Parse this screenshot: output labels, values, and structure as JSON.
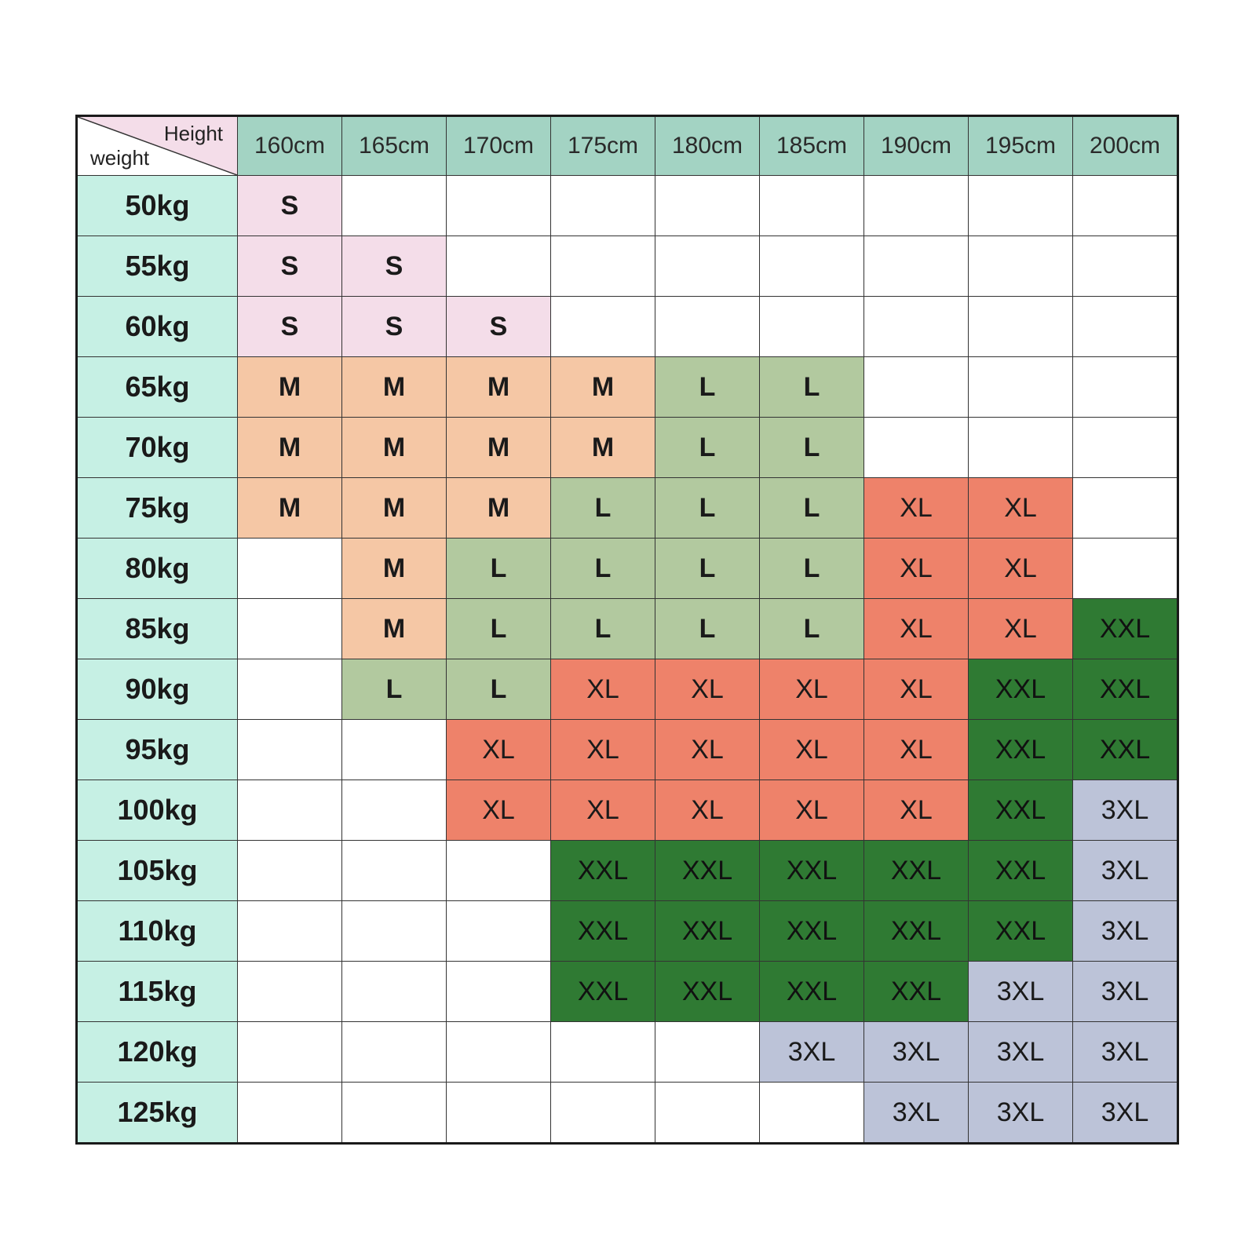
{
  "chart_data": {
    "type": "table",
    "corner": {
      "column_axis_label": "Height",
      "row_axis_label": "weight"
    },
    "columns": [
      "160cm",
      "165cm",
      "170cm",
      "175cm",
      "180cm",
      "185cm",
      "190cm",
      "195cm",
      "200cm"
    ],
    "rows": [
      {
        "label": "50kg",
        "cells": [
          "S",
          "",
          "",
          "",
          "",
          "",
          "",
          "",
          ""
        ]
      },
      {
        "label": "55kg",
        "cells": [
          "S",
          "S",
          "",
          "",
          "",
          "",
          "",
          "",
          ""
        ]
      },
      {
        "label": "60kg",
        "cells": [
          "S",
          "S",
          "S",
          "",
          "",
          "",
          "",
          "",
          ""
        ]
      },
      {
        "label": "65kg",
        "cells": [
          "M",
          "M",
          "M",
          "M",
          "L",
          "L",
          "",
          "",
          ""
        ]
      },
      {
        "label": "70kg",
        "cells": [
          "M",
          "M",
          "M",
          "M",
          "L",
          "L",
          "",
          "",
          ""
        ]
      },
      {
        "label": "75kg",
        "cells": [
          "M",
          "M",
          "M",
          "L",
          "L",
          "L",
          "XL",
          "XL",
          ""
        ]
      },
      {
        "label": "80kg",
        "cells": [
          "",
          "M",
          "L",
          "L",
          "L",
          "L",
          "XL",
          "XL",
          ""
        ]
      },
      {
        "label": "85kg",
        "cells": [
          "",
          "M",
          "L",
          "L",
          "L",
          "L",
          "XL",
          "XL",
          "XXL"
        ]
      },
      {
        "label": "90kg",
        "cells": [
          "",
          "L",
          "L",
          "XL",
          "XL",
          "XL",
          "XL",
          "XXL",
          "XXL"
        ]
      },
      {
        "label": "95kg",
        "cells": [
          "",
          "",
          "XL",
          "XL",
          "XL",
          "XL",
          "XL",
          "XXL",
          "XXL"
        ]
      },
      {
        "label": "100kg",
        "cells": [
          "",
          "",
          "XL",
          "XL",
          "XL",
          "XL",
          "XL",
          "XXL",
          "3XL"
        ]
      },
      {
        "label": "105kg",
        "cells": [
          "",
          "",
          "",
          "XXL",
          "XXL",
          "XXL",
          "XXL",
          "XXL",
          "3XL"
        ]
      },
      {
        "label": "110kg",
        "cells": [
          "",
          "",
          "",
          "XXL",
          "XXL",
          "XXL",
          "XXL",
          "XXL",
          "3XL"
        ]
      },
      {
        "label": "115kg",
        "cells": [
          "",
          "",
          "",
          "XXL",
          "XXL",
          "XXL",
          "XXL",
          "3XL",
          "3XL"
        ]
      },
      {
        "label": "120kg",
        "cells": [
          "",
          "",
          "",
          "",
          "",
          "3XL",
          "3XL",
          "3XL",
          "3XL"
        ]
      },
      {
        "label": "125kg",
        "cells": [
          "",
          "",
          "",
          "",
          "",
          "",
          "3XL",
          "3XL",
          "3XL"
        ]
      }
    ],
    "size_colors": {
      "S": "#f4dde9",
      "M": "#f5c7a5",
      "L": "#b2c99f",
      "XL": "#ee826a",
      "XXL": "#2f7a33",
      "3XL": "#bcc3d8"
    },
    "header_colors": {
      "column_header": "#a3d3c3",
      "row_header": "#c6f0e4",
      "corner": "#f4dde9"
    }
  }
}
